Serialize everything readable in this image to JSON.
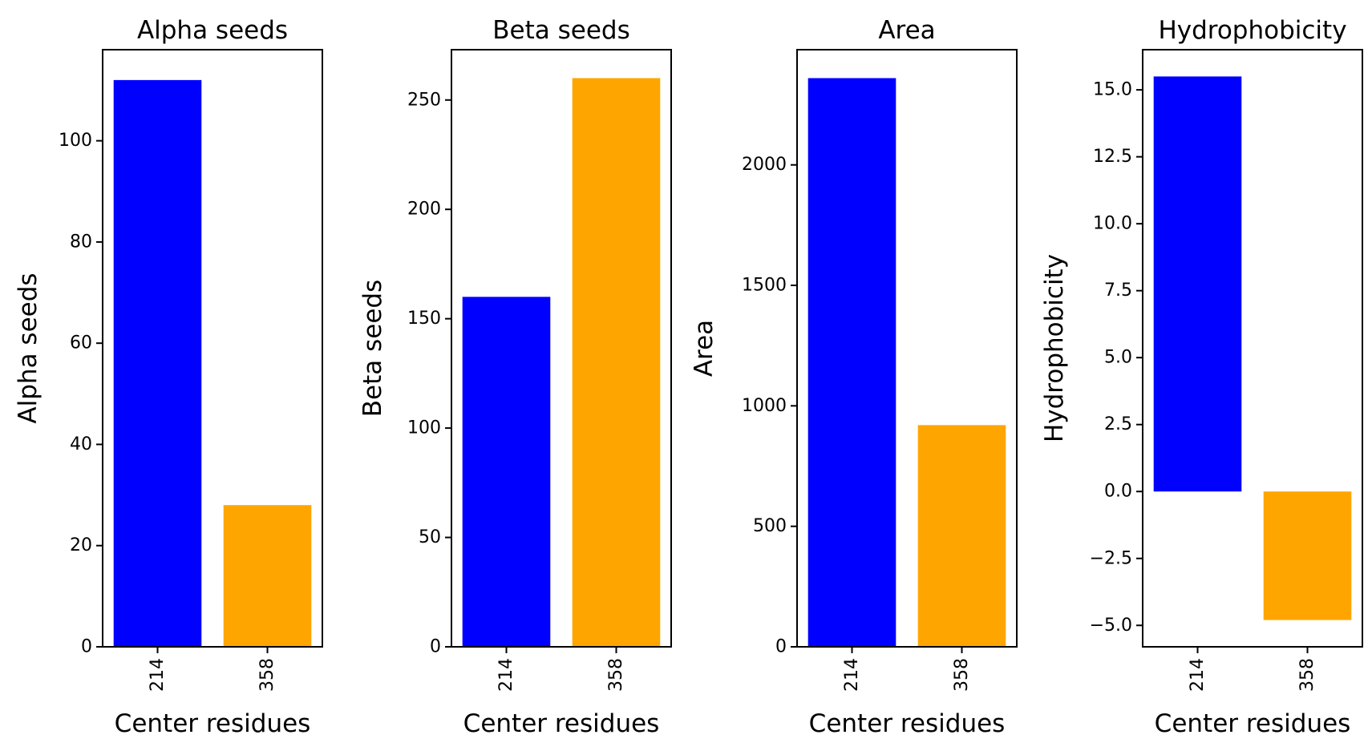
{
  "chart_data": [
    {
      "type": "bar",
      "title": "Alpha seeds",
      "xlabel": "Center residues",
      "ylabel": "Alpha seeds",
      "categories": [
        "214",
        "358"
      ],
      "values": [
        112,
        28
      ],
      "colors": [
        "#0000ff",
        "#ffa500"
      ],
      "ylim": [
        0,
        118
      ],
      "yticks": [
        0,
        20,
        40,
        60,
        80,
        100
      ],
      "ytick_labels": [
        "0",
        "20",
        "40",
        "60",
        "80",
        "100"
      ],
      "grid": false,
      "legend": "none"
    },
    {
      "type": "bar",
      "title": "Beta seeds",
      "xlabel": "Center residues",
      "ylabel": "Beta seeds",
      "categories": [
        "214",
        "358"
      ],
      "values": [
        160,
        260
      ],
      "colors": [
        "#0000ff",
        "#ffa500"
      ],
      "ylim": [
        0,
        273
      ],
      "yticks": [
        0,
        50,
        100,
        150,
        200,
        250
      ],
      "ytick_labels": [
        "0",
        "50",
        "100",
        "150",
        "200",
        "250"
      ],
      "grid": false,
      "legend": "none"
    },
    {
      "type": "bar",
      "title": "Area",
      "xlabel": "Center residues",
      "ylabel": "Area",
      "categories": [
        "214",
        "358"
      ],
      "values": [
        2360,
        920
      ],
      "colors": [
        "#0000ff",
        "#ffa500"
      ],
      "ylim": [
        0,
        2478
      ],
      "yticks": [
        0,
        500,
        1000,
        1500,
        2000
      ],
      "ytick_labels": [
        "0",
        "500",
        "1000",
        "1500",
        "2000"
      ],
      "grid": false,
      "legend": "none"
    },
    {
      "type": "bar",
      "title": "Hydrophobicity",
      "xlabel": "Center residues",
      "ylabel": "Hydrophobicity",
      "categories": [
        "214",
        "358"
      ],
      "values": [
        15.5,
        -4.8
      ],
      "colors": [
        "#0000ff",
        "#ffa500"
      ],
      "ylim": [
        -5.8,
        16.5
      ],
      "yticks": [
        -5,
        -2.5,
        0,
        2.5,
        5,
        7.5,
        10,
        12.5,
        15
      ],
      "ytick_labels": [
        "−5.0",
        "−2.5",
        "0.0",
        "2.5",
        "5.0",
        "7.5",
        "10.0",
        "12.5",
        "15.0"
      ],
      "grid": false,
      "legend": "none"
    }
  ]
}
